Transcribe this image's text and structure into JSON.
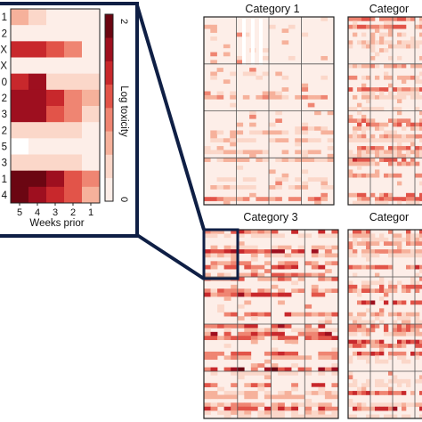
{
  "colors": {
    "scale": [
      "#fdeee8",
      "#fbd7c9",
      "#f6b19b",
      "#ef8572",
      "#e25449",
      "#c8282c",
      "#9e0f1f",
      "#6b0612"
    ],
    "frame": "#0f1f45",
    "grid": "#555555"
  },
  "inset": {
    "row_labels": [
      "1",
      "2",
      "X",
      "X",
      "0",
      "2",
      "3",
      "2",
      "5",
      "3",
      "1",
      "4"
    ],
    "x_ticks": [
      "5",
      "4",
      "3",
      "2",
      "1"
    ],
    "xlabel": "Weeks prior",
    "colorbar_label": "Log toxicity",
    "colorbar_ticks": {
      "max": "2",
      "min": "0"
    }
  },
  "panels": [
    {
      "title": "Category 1"
    },
    {
      "title": "Categor"
    },
    {
      "title": "Category 3"
    },
    {
      "title": "Categor"
    }
  ],
  "chart_data": {
    "type": "heatmap",
    "colorbar_range": [
      0,
      2
    ],
    "inset": {
      "xlabel": "Weeks prior",
      "x": [
        "5",
        "4",
        "3",
        "2",
        "1"
      ],
      "rows": [
        "1",
        "2",
        "X",
        "X",
        "0",
        "2",
        "3",
        "2",
        "5",
        "3",
        "1",
        "4"
      ],
      "values": [
        [
          0.5,
          0.3,
          0.1,
          0.1,
          0.1
        ],
        [
          0.1,
          0.1,
          0.1,
          0.1,
          0.1
        ],
        [
          1.4,
          1.3,
          1.1,
          0.9,
          0.1
        ],
        [
          0.1,
          0.1,
          0.1,
          0.1,
          0.1
        ],
        [
          1.5,
          1.7,
          0.4,
          0.2,
          0.2
        ],
        [
          1.8,
          1.7,
          1.3,
          0.9,
          0.6
        ],
        [
          1.7,
          1.8,
          1.2,
          0.8,
          0.4
        ],
        [
          0.2,
          0.2,
          0.2,
          0.2,
          0.1
        ],
        [
          0.0,
          0.1,
          0.1,
          0.1,
          0.1
        ],
        [
          0.3,
          0.3,
          0.3,
          0.2,
          0.1
        ],
        [
          2.0,
          1.9,
          1.7,
          1.2,
          0.9
        ],
        [
          1.9,
          1.8,
          1.5,
          1.1,
          0.6
        ]
      ]
    },
    "panel_grid": {
      "columns": 4,
      "rows": 4,
      "cells_x": 20,
      "cells_y": 24
    }
  }
}
